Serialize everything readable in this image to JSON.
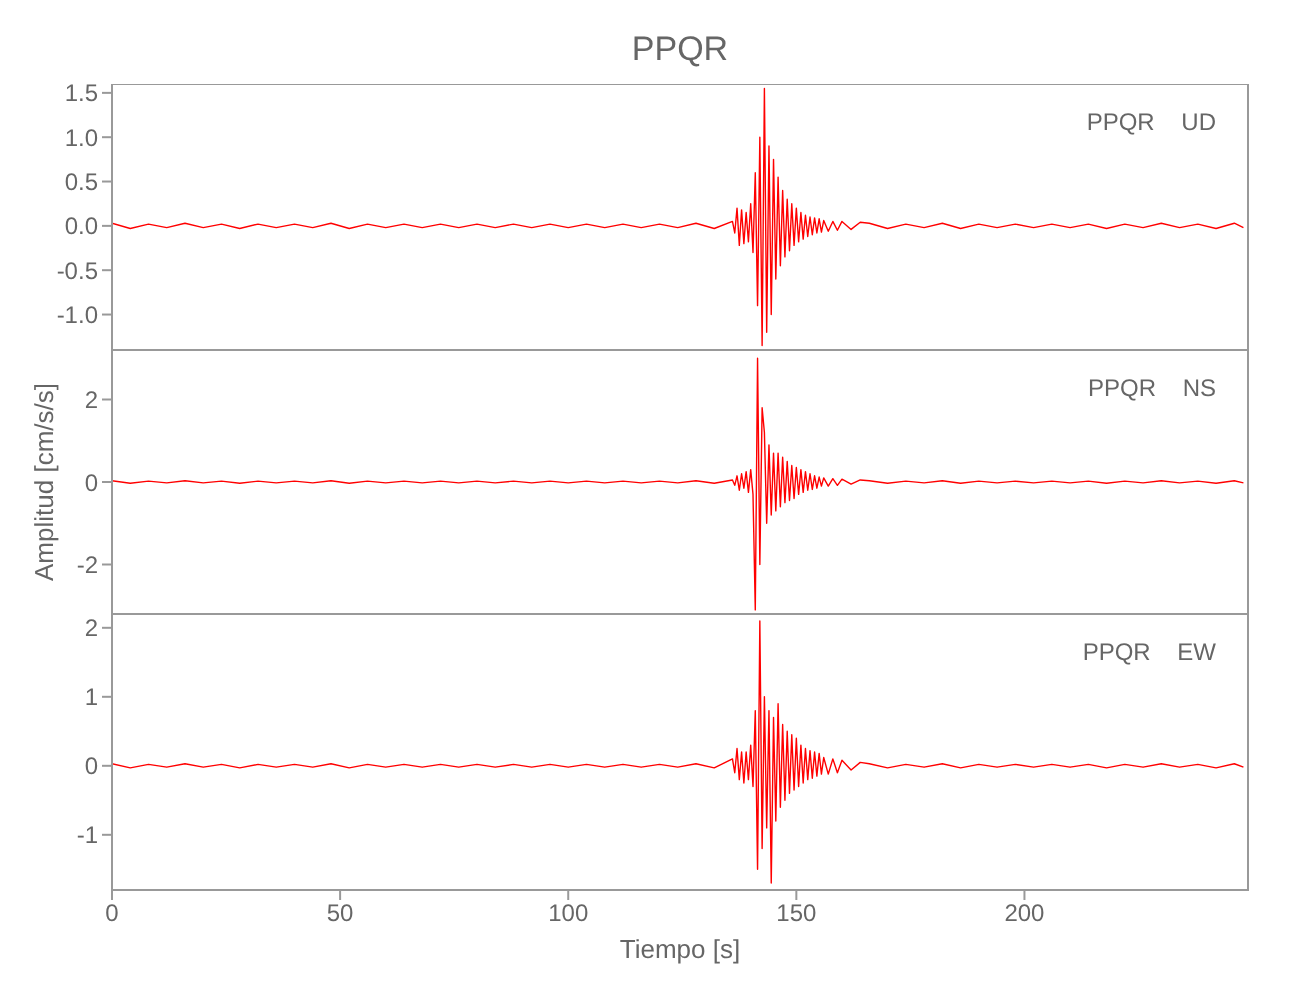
{
  "chart_data": [
    {
      "type": "line",
      "title": "PPQR",
      "annotations": [
        "PPQR UD"
      ],
      "tick_labels": "y",
      "grid": false,
      "xlim": [
        0,
        249
      ],
      "xticks": [
        0,
        50,
        100,
        150,
        200
      ],
      "ylim": [
        -1.4,
        1.6
      ],
      "yticks": [
        1.5,
        {
          "value": 1,
          "label": "1.0"
        },
        0.5,
        {
          "value": 0,
          "label": "0.0"
        },
        -0.5,
        {
          "value": -1,
          "label": "-1.0"
        }
      ],
      "x": [
        0,
        4,
        8,
        12,
        16,
        20,
        24,
        28,
        32,
        36,
        40,
        44,
        48,
        52,
        56,
        60,
        64,
        68,
        72,
        76,
        80,
        84,
        88,
        92,
        96,
        100,
        104,
        108,
        112,
        116,
        120,
        124,
        128,
        132,
        136,
        136.5,
        137,
        137.5,
        138,
        138.5,
        139,
        139.5,
        140,
        140.5,
        141,
        141.5,
        142,
        142.5,
        143,
        143.5,
        144,
        144.5,
        145,
        145.5,
        146,
        146.5,
        147,
        147.5,
        148,
        148.5,
        149,
        149.5,
        150,
        150.5,
        151,
        151.5,
        152,
        152.5,
        153,
        153.5,
        154,
        154.5,
        155,
        155.5,
        156,
        157,
        158,
        159,
        160,
        162,
        164,
        166,
        170,
        174,
        178,
        182,
        186,
        190,
        194,
        198,
        202,
        206,
        210,
        214,
        218,
        222,
        226,
        230,
        234,
        238,
        242,
        246,
        248
      ],
      "series": [
        {
          "color": "#ff0000",
          "values": [
            0.03,
            -0.03,
            0.02,
            -0.02,
            0.03,
            -0.02,
            0.02,
            -0.03,
            0.02,
            -0.02,
            0.02,
            -0.02,
            0.03,
            -0.03,
            0.02,
            -0.02,
            0.02,
            -0.02,
            0.02,
            -0.02,
            0.02,
            -0.02,
            0.02,
            -0.02,
            0.02,
            -0.02,
            0.02,
            -0.02,
            0.02,
            -0.02,
            0.02,
            -0.02,
            0.03,
            -0.03,
            0.05,
            -0.08,
            0.2,
            -0.22,
            0.18,
            -0.2,
            0.15,
            -0.18,
            0.25,
            -0.3,
            0.6,
            -0.9,
            1.0,
            -1.35,
            1.55,
            -1.2,
            0.9,
            -1.0,
            0.75,
            -0.6,
            0.55,
            -0.45,
            0.4,
            -0.35,
            0.3,
            -0.28,
            0.25,
            -0.22,
            0.2,
            -0.18,
            0.15,
            -0.15,
            0.12,
            -0.12,
            0.1,
            -0.1,
            0.09,
            -0.08,
            0.08,
            -0.07,
            0.06,
            -0.06,
            0.05,
            -0.05,
            0.05,
            -0.04,
            0.04,
            0.03,
            -0.03,
            0.02,
            -0.02,
            0.03,
            -0.03,
            0.02,
            -0.02,
            0.02,
            -0.02,
            0.02,
            -0.02,
            0.02,
            -0.03,
            0.02,
            -0.02,
            0.03,
            -0.02,
            0.02,
            -0.03,
            0.03,
            -0.02
          ]
        }
      ]
    },
    {
      "type": "line",
      "ylabel": "Amplitud [cm/s/s]",
      "annotations": [
        "PPQR NS"
      ],
      "tick_labels": "y",
      "grid": false,
      "xlim": [
        0,
        249
      ],
      "xticks": [
        0,
        50,
        100,
        150,
        200
      ],
      "ylim": [
        -3.2,
        3.2
      ],
      "yticks": [
        2,
        0,
        -2
      ],
      "x": [
        0,
        4,
        8,
        12,
        16,
        20,
        24,
        28,
        32,
        36,
        40,
        44,
        48,
        52,
        56,
        60,
        64,
        68,
        72,
        76,
        80,
        84,
        88,
        92,
        96,
        100,
        104,
        108,
        112,
        116,
        120,
        124,
        128,
        132,
        136,
        136.5,
        137,
        137.5,
        138,
        138.5,
        139,
        139.5,
        140,
        140.5,
        141,
        141.5,
        142,
        142.5,
        143,
        143.5,
        144,
        144.5,
        145,
        145.5,
        146,
        146.5,
        147,
        147.5,
        148,
        148.5,
        149,
        149.5,
        150,
        150.5,
        151,
        151.5,
        152,
        152.5,
        153,
        153.5,
        154,
        154.5,
        155,
        155.5,
        156,
        157,
        158,
        159,
        160,
        162,
        164,
        166,
        170,
        174,
        178,
        182,
        186,
        190,
        194,
        198,
        202,
        206,
        210,
        214,
        218,
        222,
        226,
        230,
        234,
        238,
        242,
        246,
        248
      ],
      "series": [
        {
          "color": "#ff0000",
          "values": [
            0.03,
            -0.03,
            0.02,
            -0.02,
            0.03,
            -0.02,
            0.02,
            -0.03,
            0.02,
            -0.02,
            0.02,
            -0.02,
            0.03,
            -0.03,
            0.02,
            -0.02,
            0.02,
            -0.02,
            0.02,
            -0.02,
            0.02,
            -0.02,
            0.02,
            -0.02,
            0.02,
            -0.02,
            0.02,
            -0.02,
            0.02,
            -0.02,
            0.02,
            -0.02,
            0.03,
            -0.03,
            0.05,
            -0.08,
            0.15,
            -0.2,
            0.2,
            -0.15,
            0.25,
            -0.25,
            0.3,
            -0.3,
            -3.1,
            3.0,
            -2.0,
            1.8,
            1.2,
            -1.0,
            0.9,
            -0.8,
            0.7,
            -0.7,
            0.7,
            -0.6,
            0.6,
            -0.5,
            0.5,
            -0.45,
            0.4,
            -0.4,
            0.35,
            -0.3,
            0.3,
            -0.25,
            0.25,
            -0.2,
            0.2,
            -0.18,
            0.15,
            -0.15,
            0.12,
            -0.1,
            0.1,
            -0.1,
            0.08,
            -0.08,
            0.07,
            -0.05,
            0.05,
            0.03,
            -0.03,
            0.02,
            -0.02,
            0.03,
            -0.03,
            0.02,
            -0.02,
            0.02,
            -0.02,
            0.02,
            -0.02,
            0.02,
            -0.03,
            0.02,
            -0.02,
            0.03,
            -0.02,
            0.02,
            -0.03,
            0.03,
            -0.02
          ]
        }
      ]
    },
    {
      "type": "line",
      "xlabel": "Tiempo [s]",
      "annotations": [
        "PPQR EW"
      ],
      "grid": false,
      "xlim": [
        0,
        249
      ],
      "xticks": [
        0,
        50,
        100,
        150,
        200
      ],
      "ylim": [
        -1.8,
        2.2
      ],
      "yticks": [
        2,
        1,
        0,
        -1
      ],
      "x": [
        0,
        4,
        8,
        12,
        16,
        20,
        24,
        28,
        32,
        36,
        40,
        44,
        48,
        52,
        56,
        60,
        64,
        68,
        72,
        76,
        80,
        84,
        88,
        92,
        96,
        100,
        104,
        108,
        112,
        116,
        120,
        124,
        128,
        132,
        136,
        136.5,
        137,
        137.5,
        138,
        138.5,
        139,
        139.5,
        140,
        140.5,
        141,
        141.5,
        142,
        142.5,
        143,
        143.5,
        144,
        144.5,
        145,
        145.5,
        146,
        146.5,
        147,
        147.5,
        148,
        148.5,
        149,
        149.5,
        150,
        150.5,
        151,
        151.5,
        152,
        152.5,
        153,
        153.5,
        154,
        154.5,
        155,
        155.5,
        156,
        157,
        158,
        159,
        160,
        162,
        164,
        166,
        170,
        174,
        178,
        182,
        186,
        190,
        194,
        198,
        202,
        206,
        210,
        214,
        218,
        222,
        226,
        230,
        234,
        238,
        242,
        246,
        248
      ],
      "series": [
        {
          "color": "#ff0000",
          "values": [
            0.03,
            -0.03,
            0.02,
            -0.02,
            0.03,
            -0.02,
            0.02,
            -0.03,
            0.02,
            -0.02,
            0.02,
            -0.02,
            0.03,
            -0.03,
            0.02,
            -0.02,
            0.02,
            -0.02,
            0.02,
            -0.02,
            0.02,
            -0.02,
            0.02,
            -0.02,
            0.02,
            -0.02,
            0.02,
            -0.02,
            0.02,
            -0.02,
            0.02,
            -0.02,
            0.03,
            -0.03,
            0.1,
            -0.1,
            0.25,
            -0.2,
            0.2,
            -0.25,
            0.2,
            -0.2,
            0.3,
            -0.3,
            0.8,
            -1.5,
            2.1,
            -1.2,
            1.0,
            -0.9,
            0.8,
            -1.7,
            0.7,
            -0.8,
            0.9,
            -0.6,
            0.6,
            -0.5,
            0.5,
            -0.4,
            0.45,
            -0.35,
            0.4,
            -0.3,
            0.3,
            -0.25,
            0.25,
            -0.2,
            0.22,
            -0.18,
            0.2,
            -0.15,
            0.18,
            -0.12,
            0.12,
            -0.12,
            0.1,
            -0.1,
            0.08,
            -0.06,
            0.05,
            0.03,
            -0.03,
            0.02,
            -0.02,
            0.03,
            -0.03,
            0.02,
            -0.02,
            0.02,
            -0.02,
            0.02,
            -0.02,
            0.02,
            -0.03,
            0.02,
            -0.02,
            0.03,
            -0.02,
            0.02,
            -0.03,
            0.03,
            -0.02
          ]
        }
      ]
    }
  ]
}
